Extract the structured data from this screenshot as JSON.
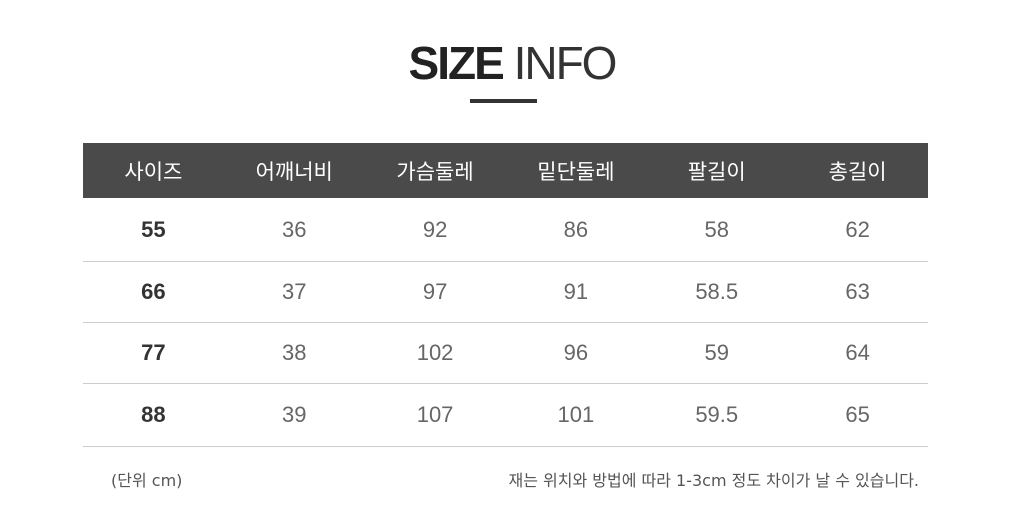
{
  "title": {
    "bold": "SIZE",
    "light": "INFO"
  },
  "table": {
    "headers": [
      "사이즈",
      "어깨너비",
      "가슴둘레",
      "밑단둘레",
      "팔길이",
      "총길이"
    ],
    "rows": [
      [
        "55",
        "36",
        "92",
        "86",
        "58",
        "62"
      ],
      [
        "66",
        "37",
        "97",
        "91",
        "58.5",
        "63"
      ],
      [
        "77",
        "38",
        "102",
        "96",
        "59",
        "64"
      ],
      [
        "88",
        "39",
        "107",
        "101",
        "59.5",
        "65"
      ]
    ]
  },
  "footer": {
    "unit": "(단위 cm)",
    "note": "재는 위치와 방법에 따라 1-3cm 정도 차이가 날 수 있습니다."
  },
  "colors": {
    "header_bg": "#4a4a4a",
    "header_text": "#ffffff"
  }
}
